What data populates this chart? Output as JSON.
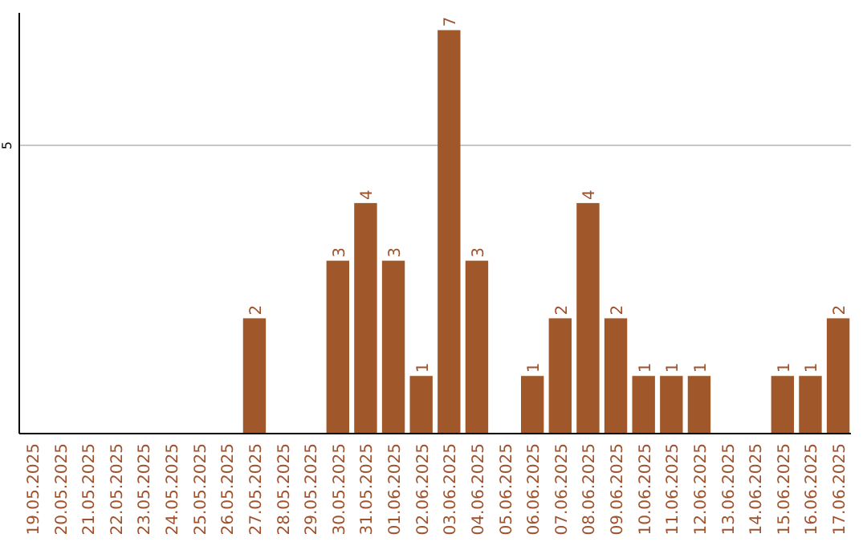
{
  "chart_data": {
    "type": "bar",
    "categories": [
      "19.05.2025",
      "20.05.2025",
      "21.05.2025",
      "22.05.2025",
      "23.05.2025",
      "24.05.2025",
      "25.05.2025",
      "26.05.2025",
      "27.05.2025",
      "28.05.2025",
      "29.05.2025",
      "30.05.2025",
      "31.05.2025",
      "01.06.2025",
      "02.06.2025",
      "03.06.2025",
      "04.06.2025",
      "05.06.2025",
      "06.06.2025",
      "07.06.2025",
      "08.06.2025",
      "09.06.2025",
      "10.06.2025",
      "11.06.2025",
      "12.06.2025",
      "13.06.2025",
      "14.06.2025",
      "15.06.2025",
      "16.06.2025",
      "17.06.2025"
    ],
    "values": [
      0,
      0,
      0,
      0,
      0,
      0,
      0,
      0,
      2,
      0,
      0,
      3,
      4,
      3,
      1,
      7,
      3,
      0,
      1,
      2,
      4,
      2,
      1,
      1,
      1,
      0,
      0,
      1,
      1,
      2
    ],
    "value_labels": [
      null,
      null,
      null,
      null,
      null,
      null,
      null,
      null,
      "2",
      null,
      null,
      "3",
      "4",
      "3",
      "1",
      "7",
      "3",
      null,
      "1",
      "2",
      "4",
      "2",
      "1",
      "1",
      "1",
      null,
      null,
      "1",
      "1",
      "2"
    ],
    "color": "#a0582a",
    "ylim": [
      0,
      7.3
    ],
    "yticks": [
      5
    ],
    "grid": "y"
  }
}
